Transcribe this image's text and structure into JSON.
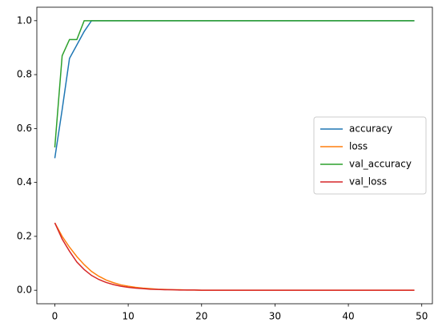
{
  "chart_data": {
    "type": "line",
    "x": [
      0,
      1,
      2,
      3,
      4,
      5,
      6,
      7,
      8,
      9,
      10,
      11,
      12,
      13,
      14,
      15,
      16,
      17,
      18,
      19,
      20,
      21,
      22,
      23,
      24,
      25,
      26,
      27,
      28,
      29,
      30,
      31,
      32,
      33,
      34,
      35,
      36,
      37,
      38,
      39,
      40,
      41,
      42,
      43,
      44,
      45,
      46,
      47,
      48,
      49
    ],
    "series": [
      {
        "name": "accuracy",
        "color": "#1f77b4",
        "values": [
          0.49,
          0.67,
          0.86,
          0.91,
          0.96,
          1,
          1,
          1,
          1,
          1,
          1,
          1,
          1,
          1,
          1,
          1,
          1,
          1,
          1,
          1,
          1,
          1,
          1,
          1,
          1,
          1,
          1,
          1,
          1,
          1,
          1,
          1,
          1,
          1,
          1,
          1,
          1,
          1,
          1,
          1,
          1,
          1,
          1,
          1,
          1,
          1,
          1,
          1,
          1,
          1
        ]
      },
      {
        "name": "loss",
        "color": "#ff7f0e",
        "values": [
          0.25,
          0.2,
          0.16,
          0.125,
          0.095,
          0.07,
          0.052,
          0.038,
          0.028,
          0.02,
          0.015,
          0.011,
          0.008,
          0.006,
          0.004,
          0.003,
          0.002,
          0.002,
          0.001,
          0.001,
          0,
          0,
          0,
          0,
          0,
          0,
          0,
          0,
          0,
          0,
          0,
          0,
          0,
          0,
          0,
          0,
          0,
          0,
          0,
          0,
          0,
          0,
          0,
          0,
          0,
          0,
          0,
          0,
          0,
          0
        ]
      },
      {
        "name": "val_accuracy",
        "color": "#2ca02c",
        "values": [
          0.53,
          0.87,
          0.93,
          0.93,
          1,
          1,
          1,
          1,
          1,
          1,
          1,
          1,
          1,
          1,
          1,
          1,
          1,
          1,
          1,
          1,
          1,
          1,
          1,
          1,
          1,
          1,
          1,
          1,
          1,
          1,
          1,
          1,
          1,
          1,
          1,
          1,
          1,
          1,
          1,
          1,
          1,
          1,
          1,
          1,
          1,
          1,
          1,
          1,
          1,
          1
        ]
      },
      {
        "name": "val_loss",
        "color": "#d62728",
        "values": [
          0.25,
          0.19,
          0.145,
          0.105,
          0.077,
          0.055,
          0.04,
          0.029,
          0.021,
          0.015,
          0.011,
          0.008,
          0.006,
          0.004,
          0.003,
          0.002,
          0.002,
          0.001,
          0.001,
          0.001,
          0,
          0,
          0,
          0,
          0,
          0,
          0,
          0,
          0,
          0,
          0,
          0,
          0,
          0,
          0,
          0,
          0,
          0,
          0,
          0,
          0,
          0,
          0,
          0,
          0,
          0,
          0,
          0,
          0,
          0
        ]
      }
    ],
    "xlim": [
      -2.45,
      51.45
    ],
    "xticks": [
      0,
      10,
      20,
      30,
      40,
      50
    ],
    "ylim": [
      -0.05,
      1.05
    ],
    "yticks": [
      {
        "value": 0,
        "label": "0.0"
      },
      0.2,
      0.4,
      0.6,
      0.8,
      {
        "value": 1,
        "label": "1.0"
      }
    ],
    "legend": "center right"
  }
}
